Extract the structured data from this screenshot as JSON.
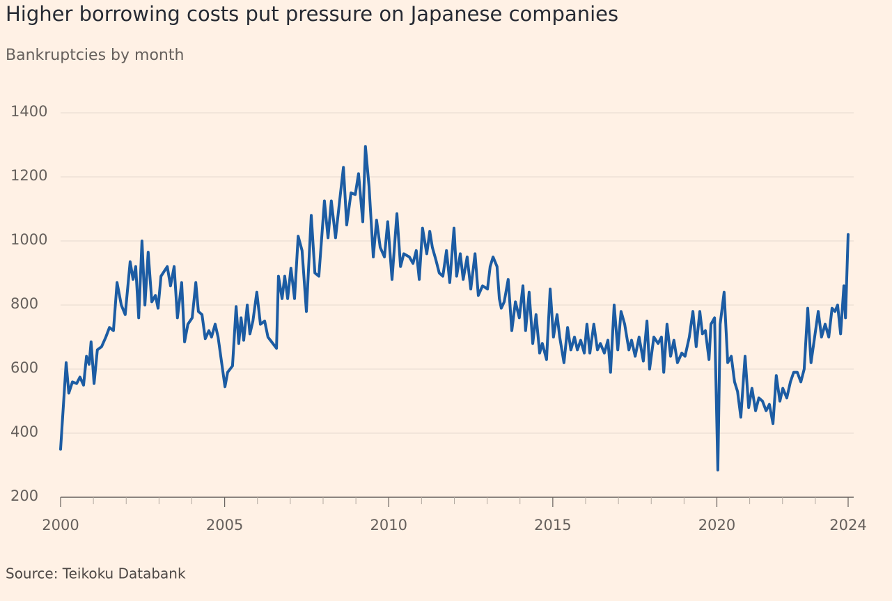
{
  "chart_data": {
    "type": "line",
    "title": "Higher borrowing costs put pressure on Japanese companies",
    "subtitle": "Bankruptcies by month",
    "source": "Source: Teikoku Databank",
    "xlim": [
      2000,
      2024
    ],
    "xticks": [
      2000,
      2005,
      2010,
      2015,
      2020,
      2024
    ],
    "xminorticks": [
      2001,
      2002,
      2003,
      2004,
      2006,
      2007,
      2008,
      2009,
      2011,
      2012,
      2013,
      2014,
      2016,
      2017,
      2018,
      2019,
      2021,
      2022,
      2023
    ],
    "ylim": [
      200,
      1400
    ],
    "yticks": [
      200,
      400,
      600,
      800,
      1000,
      1200,
      1400
    ],
    "grid": true,
    "x": [
      2000.0,
      2000.17,
      2000.25,
      2000.36,
      2000.49,
      2000.59,
      2000.7,
      2000.79,
      2000.87,
      2000.93,
      2001.02,
      2001.12,
      2001.25,
      2001.38,
      2001.49,
      2001.61,
      2001.72,
      2001.85,
      2001.97,
      2002.12,
      2002.21,
      2002.29,
      2002.38,
      2002.48,
      2002.57,
      2002.67,
      2002.78,
      2002.89,
      2002.97,
      2003.06,
      2003.25,
      2003.35,
      2003.46,
      2003.56,
      2003.69,
      2003.78,
      2003.88,
      2004.01,
      2004.12,
      2004.2,
      2004.31,
      2004.41,
      2004.52,
      2004.6,
      2004.71,
      2004.8,
      2005.01,
      2005.09,
      2005.24,
      2005.35,
      2005.43,
      2005.5,
      2005.58,
      2005.69,
      2005.77,
      2005.86,
      2005.98,
      2006.09,
      2006.22,
      2006.32,
      2006.58,
      2006.64,
      2006.75,
      2006.83,
      2006.92,
      2007.02,
      2007.13,
      2007.24,
      2007.36,
      2007.49,
      2007.64,
      2007.75,
      2007.87,
      2008.04,
      2008.15,
      2008.25,
      2008.38,
      2008.51,
      2008.62,
      2008.72,
      2008.85,
      2008.98,
      2009.08,
      2009.21,
      2009.29,
      2009.4,
      2009.53,
      2009.63,
      2009.74,
      2009.87,
      2009.97,
      2010.1,
      2010.25,
      2010.36,
      2010.46,
      2010.63,
      2010.74,
      2010.84,
      2010.93,
      2011.03,
      2011.16,
      2011.25,
      2011.33,
      2011.44,
      2011.54,
      2011.65,
      2011.76,
      2011.86,
      2011.99,
      2012.07,
      2012.18,
      2012.27,
      2012.39,
      2012.5,
      2012.63,
      2012.73,
      2012.86,
      2013.01,
      2013.09,
      2013.18,
      2013.3,
      2013.37,
      2013.43,
      2013.52,
      2013.64,
      2013.75,
      2013.86,
      2013.98,
      2014.09,
      2014.17,
      2014.28,
      2014.39,
      2014.49,
      2014.6,
      2014.68,
      2014.81,
      2014.92,
      2015.02,
      2015.13,
      2015.21,
      2015.34,
      2015.45,
      2015.55,
      2015.66,
      2015.75,
      2015.85,
      2015.96,
      2016.04,
      2016.13,
      2016.25,
      2016.36,
      2016.45,
      2016.57,
      2016.68,
      2016.76,
      2016.87,
      2016.98,
      2017.08,
      2017.19,
      2017.32,
      2017.4,
      2017.51,
      2017.63,
      2017.76,
      2017.87,
      2017.95,
      2018.08,
      2018.21,
      2018.31,
      2018.38,
      2018.48,
      2018.59,
      2018.69,
      2018.8,
      2018.93,
      2019.03,
      2019.16,
      2019.27,
      2019.37,
      2019.48,
      2019.56,
      2019.65,
      2019.76,
      2019.82,
      2019.93,
      2020.03,
      2020.1,
      2020.22,
      2020.33,
      2020.44,
      2020.54,
      2020.63,
      2020.73,
      2020.86,
      2020.97,
      2021.07,
      2021.18,
      2021.28,
      2021.39,
      2021.5,
      2021.6,
      2021.71,
      2021.81,
      2021.92,
      2022.01,
      2022.13,
      2022.24,
      2022.34,
      2022.45,
      2022.56,
      2022.66,
      2022.77,
      2022.87,
      2022.98,
      2023.09,
      2023.19,
      2023.3,
      2023.41,
      2023.51,
      2023.6,
      2023.68,
      2023.77,
      2023.87,
      2023.92,
      2024.0
    ],
    "series": [
      {
        "color": "#1c5ca3",
        "values": [
          350,
          620,
          525,
          560,
          555,
          575,
          550,
          640,
          615,
          685,
          555,
          660,
          670,
          700,
          730,
          720,
          870,
          800,
          770,
          935,
          880,
          920,
          760,
          1000,
          800,
          965,
          810,
          830,
          790,
          890,
          920,
          860,
          920,
          760,
          870,
          685,
          740,
          760,
          870,
          780,
          770,
          695,
          720,
          700,
          740,
          700,
          545,
          590,
          610,
          795,
          680,
          760,
          690,
          800,
          710,
          750,
          840,
          740,
          750,
          700,
          665,
          890,
          820,
          890,
          820,
          915,
          820,
          1015,
          970,
          780,
          1080,
          900,
          890,
          1125,
          1010,
          1125,
          1010,
          1130,
          1230,
          1050,
          1150,
          1145,
          1210,
          1060,
          1295,
          1170,
          950,
          1065,
          980,
          950,
          1060,
          880,
          1085,
          920,
          960,
          950,
          930,
          970,
          880,
          1040,
          960,
          1030,
          980,
          940,
          900,
          890,
          970,
          870,
          1040,
          890,
          960,
          880,
          950,
          850,
          960,
          830,
          860,
          850,
          920,
          950,
          920,
          820,
          790,
          810,
          880,
          720,
          810,
          760,
          860,
          720,
          840,
          680,
          770,
          650,
          680,
          630,
          850,
          700,
          770,
          700,
          620,
          730,
          660,
          700,
          660,
          690,
          650,
          740,
          650,
          740,
          660,
          680,
          650,
          690,
          590,
          800,
          660,
          780,
          740,
          660,
          690,
          640,
          700,
          625,
          750,
          600,
          700,
          680,
          700,
          590,
          740,
          640,
          690,
          620,
          650,
          640,
          700,
          780,
          670,
          780,
          710,
          720,
          630,
          740,
          760,
          285,
          740,
          840,
          620,
          640,
          560,
          530,
          450,
          640,
          480,
          540,
          470,
          510,
          500,
          470,
          490,
          430,
          580,
          500,
          540,
          510,
          560,
          590,
          590,
          560,
          600,
          790,
          620,
          700,
          780,
          700,
          740,
          700,
          790,
          780,
          800,
          710,
          860,
          760,
          1020
        ]
      }
    ]
  }
}
